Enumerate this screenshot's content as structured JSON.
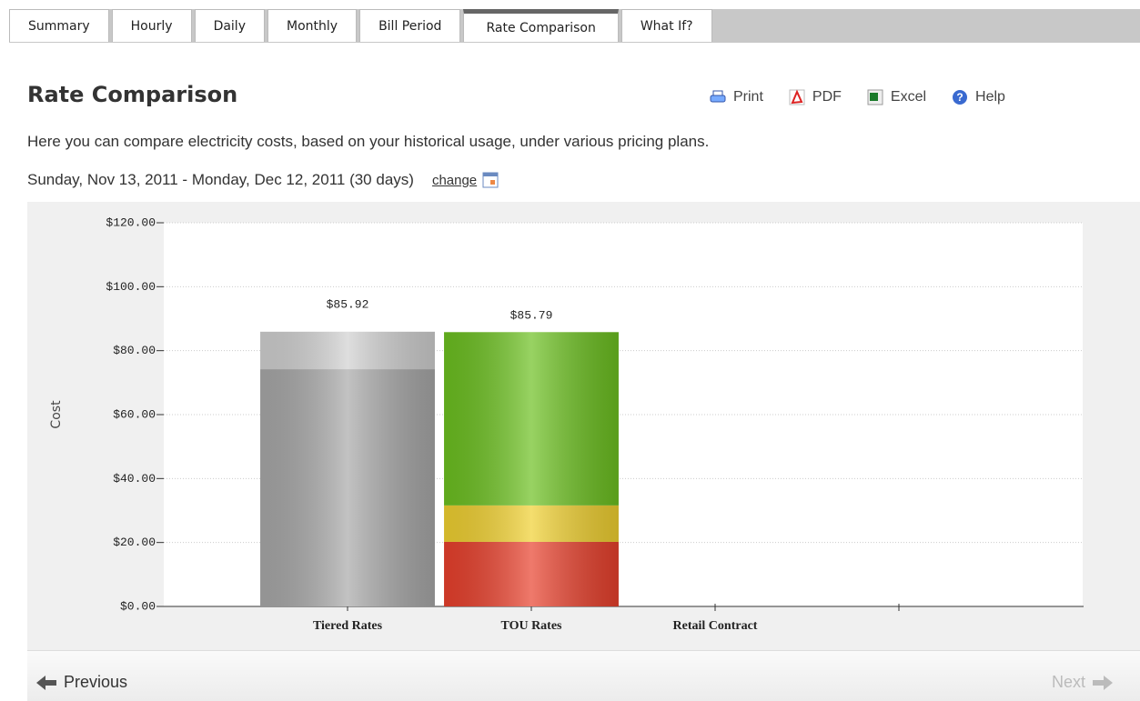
{
  "tabs": [
    "Summary",
    "Hourly",
    "Daily",
    "Monthly",
    "Bill Period",
    "Rate Comparison",
    "What If?"
  ],
  "active_tab": 5,
  "header": {
    "title": "Rate Comparison",
    "tools": [
      "Print",
      "PDF",
      "Excel",
      "Help"
    ],
    "description": "Here you can compare electricity costs, based on your historical usage, under various pricing plans.",
    "date_range": "Sunday, Nov 13, 2011 - Monday, Dec 12, 2011 (30 days)",
    "change_link": "change"
  },
  "chart_data": {
    "type": "stacked_bar",
    "categories": [
      "Tiered Rates",
      "TOU Rates",
      "Retail Contract",
      null
    ],
    "series": [
      {
        "color": "#a8a8a8",
        "values": [
          74.2,
          null,
          null,
          null
        ]
      },
      {
        "color": "#d0d0d0",
        "values": [
          11.72,
          null,
          null,
          null
        ]
      },
      {
        "color": "#e8402c",
        "values": [
          null,
          20.2,
          null,
          null
        ]
      },
      {
        "color": "#f0d030",
        "values": [
          null,
          11.4,
          null,
          null
        ]
      },
      {
        "color": "#6cc020",
        "values": [
          null,
          54.19,
          null,
          null
        ]
      }
    ],
    "totals": [
      85.92,
      85.79,
      null,
      null
    ],
    "total_labels": [
      "$85.92",
      "$85.79",
      null,
      null
    ],
    "ylabel": "Cost",
    "ylim": [
      0,
      120
    ],
    "yticks": [
      {
        "value": 0,
        "label": "$0.00"
      },
      {
        "value": 20,
        "label": "$20.00"
      },
      {
        "value": 40,
        "label": "$40.00"
      },
      {
        "value": 60,
        "label": "$60.00"
      },
      {
        "value": 80,
        "label": "$80.00"
      },
      {
        "value": 100,
        "label": "$100.00"
      },
      {
        "value": 120,
        "label": "$120.00"
      }
    ],
    "grid": true
  },
  "nav": {
    "previous": "Previous",
    "next": "Next"
  }
}
